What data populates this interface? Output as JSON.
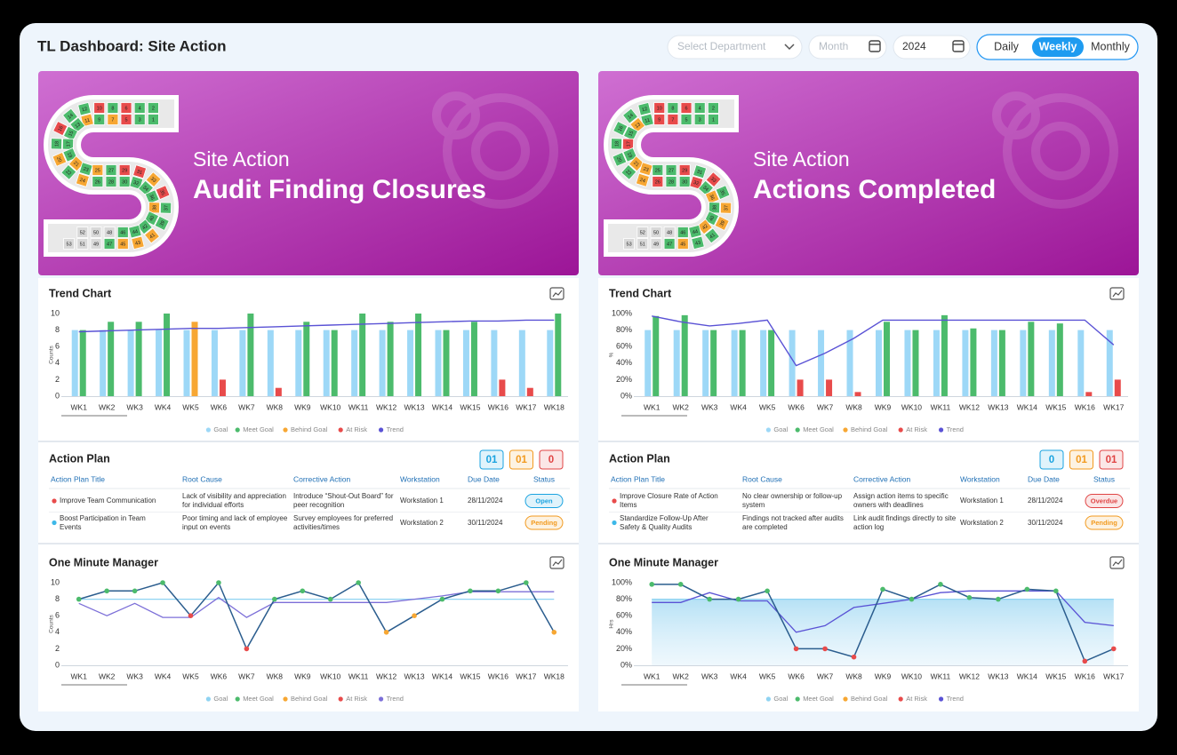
{
  "header": {
    "title": "TL Dashboard: Site Action",
    "department": "Select Department",
    "month": "Month",
    "year": "2024",
    "views": [
      {
        "label": "Daily"
      },
      {
        "label": "Weekly",
        "active": true
      },
      {
        "label": "Monthly"
      }
    ]
  },
  "status_colors": {
    "g": "#4cbb6c",
    "o": "#f7a733",
    "r": "#e84b4b",
    "n": "#d9d9d9"
  },
  "panels": [
    {
      "banner": {
        "kicker": "Site Action",
        "title": "Audit Finding Closures",
        "numbers": [
          1,
          2,
          3,
          4,
          5,
          6,
          7,
          8,
          9,
          10,
          11,
          12,
          13,
          14,
          15,
          16,
          17,
          18,
          19,
          20,
          21,
          22,
          23,
          24,
          25,
          26,
          27,
          28,
          29,
          30,
          31,
          32,
          33,
          34,
          35,
          36,
          37,
          38,
          39,
          40,
          41,
          42,
          43,
          44,
          45,
          46,
          47,
          48,
          49,
          50,
          51,
          52,
          53
        ],
        "status": [
          "g",
          "g",
          "g",
          "g",
          "r",
          "r",
          "o",
          "g",
          "g",
          "r",
          "o",
          "g",
          "g",
          "g",
          "g",
          "r",
          "g",
          "g",
          "g",
          "o",
          "o",
          "g",
          "g",
          "o",
          "o",
          "g",
          "g",
          "g",
          "r",
          "g",
          "r",
          "g",
          "o",
          "g",
          "r",
          "g",
          "g",
          "o",
          "g",
          "g",
          "o",
          "g",
          "o",
          "g",
          "o",
          "g",
          "g",
          "n",
          "n",
          "n",
          "n",
          "n",
          "n"
        ]
      },
      "action_plan": {
        "title": "Action Plan",
        "counters": [
          {
            "label": "01",
            "color": "#1aa3e0"
          },
          {
            "label": "01",
            "color": "#f29a1f"
          },
          {
            "label": "0",
            "color": "#e04444"
          }
        ],
        "columns": [
          "Action Plan Title",
          "Root Cause",
          "Corrective Action",
          "Workstation",
          "Due Date",
          "Status"
        ],
        "rows": [
          {
            "title": "Improve Team Communication",
            "root_cause": "Lack of visibility and appreciation for individual efforts",
            "corrective_action": "Introduce “Shout-Out Board” for peer recognition",
            "workstation": "Workstation 1",
            "due_date": "28/11/2024",
            "status": "Open",
            "dot": "#e84b4b",
            "status_color": "#1aa3e0"
          },
          {
            "title": "Boost Participation in Team Events",
            "root_cause": "Poor timing and lack of employee input on events",
            "corrective_action": "Survey employees for preferred activities/times",
            "workstation": "Workstation 2",
            "due_date": "30/11/2024",
            "status": "Pending",
            "dot": "#3db8e8",
            "status_color": "#f29a1f"
          }
        ]
      }
    },
    {
      "banner": {
        "kicker": "Site Action",
        "title": "Actions Completed",
        "numbers": [
          1,
          2,
          3,
          4,
          5,
          6,
          7,
          8,
          9,
          10,
          11,
          12,
          13,
          14,
          15,
          16,
          17,
          18,
          19,
          20,
          21,
          22,
          23,
          24,
          25,
          26,
          27,
          28,
          29,
          30,
          31,
          32,
          33,
          34,
          35,
          36,
          37,
          38,
          39,
          40,
          41,
          42,
          43,
          44,
          45,
          46,
          47,
          48,
          49,
          50,
          51,
          52,
          53
        ],
        "status": [
          "g",
          "g",
          "g",
          "g",
          "g",
          "r",
          "r",
          "g",
          "r",
          "r",
          "g",
          "g",
          "o",
          "g",
          "g",
          "g",
          "r",
          "g",
          "g",
          "g",
          "o",
          "g",
          "o",
          "o",
          "g",
          "r",
          "g",
          "g",
          "r",
          "g",
          "g",
          "r",
          "r",
          "g",
          "g",
          "o",
          "o",
          "g",
          "o",
          "g",
          "g",
          "o",
          "g",
          "g",
          "o",
          "g",
          "g",
          "n",
          "n",
          "n",
          "n",
          "n",
          "n"
        ]
      },
      "action_plan": {
        "title": "Action Plan",
        "counters": [
          {
            "label": "0",
            "color": "#1aa3e0"
          },
          {
            "label": "01",
            "color": "#f29a1f"
          },
          {
            "label": "01",
            "color": "#e04444"
          }
        ],
        "columns": [
          "Action Plan Title",
          "Root Cause",
          "Corrective Action",
          "Workstation",
          "Due Date",
          "Status"
        ],
        "rows": [
          {
            "title": "Improve Closure Rate of Action Items",
            "root_cause": "No clear ownership or follow-up system",
            "corrective_action": "Assign action items to specific owners with deadlines",
            "workstation": "Workstation 1",
            "due_date": "28/11/2024",
            "status": "Overdue",
            "dot": "#e84b4b",
            "status_color": "#e04444"
          },
          {
            "title": "Standardize Follow-Up After Safety & Quality Audits",
            "root_cause": "Findings not tracked after audits are completed",
            "corrective_action": "Link audit findings directly to site action log",
            "workstation": "Workstation 2",
            "due_date": "30/11/2024",
            "status": "Pending",
            "dot": "#3db8e8",
            "status_color": "#f29a1f"
          }
        ]
      }
    }
  ],
  "chart_data": [
    {
      "type": "bar",
      "title": "Trend Chart",
      "y_label": "Counts",
      "categories": [
        "WK1",
        "WK2",
        "WK3",
        "WK4",
        "WK5",
        "WK6",
        "WK7",
        "WK8",
        "WK9",
        "WK10",
        "WK11",
        "WK12",
        "WK13",
        "WK14",
        "WK15",
        "WK16",
        "WK17",
        "WK18"
      ],
      "ylim": [
        0,
        10
      ],
      "yticks": [
        0,
        2,
        4,
        6,
        8,
        10
      ],
      "series": [
        {
          "name": "Goal",
          "style": "reference",
          "color": "#9dd8f7",
          "values": [
            8,
            8,
            8,
            8,
            8,
            8,
            8,
            8,
            8,
            8,
            8,
            8,
            8,
            8,
            8,
            8,
            8,
            8
          ]
        },
        {
          "name": "Meet Goal",
          "style": "status",
          "color": "#4cbb6c",
          "values": [
            8,
            9,
            9,
            10,
            null,
            null,
            10,
            null,
            9,
            8,
            10,
            9,
            10,
            8,
            9,
            null,
            null,
            10
          ]
        },
        {
          "name": "Behind Goal",
          "style": "status",
          "color": "#f7a733",
          "values": [
            null,
            null,
            null,
            null,
            9,
            null,
            null,
            null,
            null,
            null,
            null,
            null,
            null,
            null,
            null,
            null,
            null,
            null
          ]
        },
        {
          "name": "At Risk",
          "style": "status",
          "color": "#e84b4b",
          "values": [
            null,
            null,
            null,
            null,
            null,
            2,
            null,
            1,
            null,
            null,
            null,
            null,
            null,
            null,
            null,
            2,
            1,
            null
          ]
        },
        {
          "name": "Trend",
          "style": "trend",
          "color": "#5a52d5",
          "values": [
            7.8,
            7.9,
            8.0,
            8.1,
            8.2,
            8.2,
            8.3,
            8.4,
            8.5,
            8.6,
            8.7,
            8.8,
            8.9,
            9.0,
            9.1,
            9.1,
            9.2,
            9.2
          ]
        }
      ]
    },
    {
      "type": "line",
      "title": "One Minute Manager",
      "y_label": "Counts",
      "categories": [
        "WK1",
        "WK2",
        "WK3",
        "WK4",
        "WK5",
        "WK6",
        "WK7",
        "WK8",
        "WK9",
        "WK10",
        "WK11",
        "WK12",
        "WK13",
        "WK14",
        "WK15",
        "WK16",
        "WK17",
        "WK18"
      ],
      "ylim": [
        0,
        10
      ],
      "yticks": [
        0,
        2,
        4,
        6,
        8,
        10
      ],
      "series": [
        {
          "name": "Goal",
          "style": "reference",
          "color": "#8fd3f2",
          "values": [
            8,
            8,
            8,
            8,
            8,
            8,
            8,
            8,
            8,
            8,
            8,
            8,
            8,
            8,
            8,
            8,
            8,
            8
          ]
        },
        {
          "name": "Meet Goal",
          "style": "status",
          "color": "#4cbb6c",
          "values": [
            8,
            9,
            9,
            10,
            null,
            10,
            null,
            8,
            9,
            8,
            10,
            null,
            null,
            8,
            9,
            9,
            10,
            null
          ]
        },
        {
          "name": "Behind Goal",
          "style": "status",
          "color": "#f7a733",
          "values": [
            null,
            null,
            null,
            null,
            null,
            null,
            null,
            null,
            null,
            null,
            null,
            4,
            6,
            null,
            null,
            null,
            null,
            4
          ]
        },
        {
          "name": "At Risk",
          "style": "status",
          "color": "#e84b4b",
          "values": [
            null,
            null,
            null,
            null,
            6,
            null,
            2,
            null,
            null,
            null,
            null,
            null,
            null,
            null,
            null,
            null,
            null,
            null
          ]
        },
        {
          "name": "Trend",
          "style": "trend",
          "color": "#7c6fd8",
          "values": [
            7.5,
            6,
            7.5,
            5.8,
            5.8,
            8.2,
            5.8,
            7.6,
            7.6,
            7.6,
            7.6,
            7.6,
            8,
            8.4,
            8.9,
            8.9,
            8.9,
            8.9
          ]
        }
      ]
    },
    {
      "type": "bar",
      "title": "Trend Chart",
      "y_label": "%",
      "categories": [
        "WK1",
        "WK2",
        "WK3",
        "WK4",
        "WK5",
        "WK6",
        "WK7",
        "WK8",
        "WK9",
        "WK10",
        "WK11",
        "WK12",
        "WK13",
        "WK14",
        "WK15",
        "WK16",
        "WK17"
      ],
      "ylim": [
        0,
        100
      ],
      "yticks": [
        {
          "value": 0,
          "label": "0%"
        },
        {
          "value": 20,
          "label": "20%"
        },
        {
          "value": 40,
          "label": "40%"
        },
        {
          "value": 60,
          "label": "60%"
        },
        {
          "value": 80,
          "label": "80%"
        },
        {
          "value": 100,
          "label": "100%"
        }
      ],
      "series": [
        {
          "name": "Goal",
          "style": "reference",
          "color": "#9dd8f7",
          "values": [
            80,
            80,
            80,
            80,
            80,
            80,
            80,
            80,
            80,
            80,
            80,
            80,
            80,
            80,
            80,
            80,
            80
          ]
        },
        {
          "name": "Meet Goal",
          "style": "status",
          "color": "#4cbb6c",
          "values": [
            97,
            98,
            80,
            80,
            80,
            null,
            null,
            null,
            90,
            80,
            98,
            82,
            80,
            90,
            88,
            null,
            null
          ]
        },
        {
          "name": "Behind Goal",
          "style": "status",
          "color": "#f7a733",
          "values": [
            null,
            null,
            null,
            null,
            null,
            null,
            null,
            null,
            null,
            null,
            null,
            null,
            null,
            null,
            null,
            null,
            null
          ]
        },
        {
          "name": "At Risk",
          "style": "status",
          "color": "#e84b4b",
          "values": [
            null,
            null,
            null,
            null,
            null,
            20,
            20,
            5,
            null,
            null,
            null,
            null,
            null,
            null,
            null,
            5,
            20
          ]
        },
        {
          "name": "Trend",
          "style": "trend",
          "color": "#5a52d5",
          "values": [
            97,
            90,
            85,
            88,
            92,
            37,
            52,
            70,
            92,
            92,
            92,
            92,
            92,
            92,
            92,
            92,
            62
          ]
        }
      ]
    },
    {
      "type": "line",
      "title": "One Minute Manager",
      "y_label": "Hrs",
      "fill_goal": true,
      "categories": [
        "WK1",
        "WK2",
        "WK3",
        "WK4",
        "WK5",
        "WK6",
        "WK7",
        "WK8",
        "WK9",
        "WK10",
        "WK11",
        "WK12",
        "WK13",
        "WK14",
        "WK15",
        "WK16",
        "WK17"
      ],
      "ylim": [
        0,
        100
      ],
      "yticks": [
        {
          "value": 0,
          "label": "0%"
        },
        {
          "value": 20,
          "label": "20%"
        },
        {
          "value": 40,
          "label": "40%"
        },
        {
          "value": 60,
          "label": "60%"
        },
        {
          "value": 80,
          "label": "80%"
        },
        {
          "value": 100,
          "label": "100%"
        }
      ],
      "series": [
        {
          "name": "Goal",
          "style": "reference",
          "color": "#8fd3f2",
          "values": [
            80,
            80,
            80,
            80,
            80,
            80,
            80,
            80,
            80,
            80,
            80,
            80,
            80,
            80,
            80,
            80,
            80
          ]
        },
        {
          "name": "Meet Goal",
          "style": "status",
          "color": "#4cbb6c",
          "values": [
            98,
            98,
            80,
            80,
            90,
            null,
            null,
            null,
            92,
            80,
            98,
            82,
            80,
            92,
            90,
            null,
            null
          ]
        },
        {
          "name": "Behind Goal",
          "style": "status",
          "color": "#f7a733",
          "values": [
            null,
            null,
            null,
            null,
            null,
            null,
            null,
            null,
            null,
            null,
            null,
            null,
            null,
            null,
            null,
            null,
            null
          ]
        },
        {
          "name": "At Risk",
          "style": "status",
          "color": "#e84b4b",
          "values": [
            null,
            null,
            null,
            null,
            null,
            20,
            20,
            10,
            null,
            null,
            null,
            null,
            null,
            null,
            null,
            5,
            20
          ]
        },
        {
          "name": "Trend",
          "style": "trend",
          "color": "#5a52d5",
          "values": [
            76,
            76,
            88,
            78,
            78,
            40,
            48,
            70,
            75,
            80,
            88,
            90,
            90,
            90,
            90,
            52,
            48
          ]
        }
      ]
    }
  ]
}
